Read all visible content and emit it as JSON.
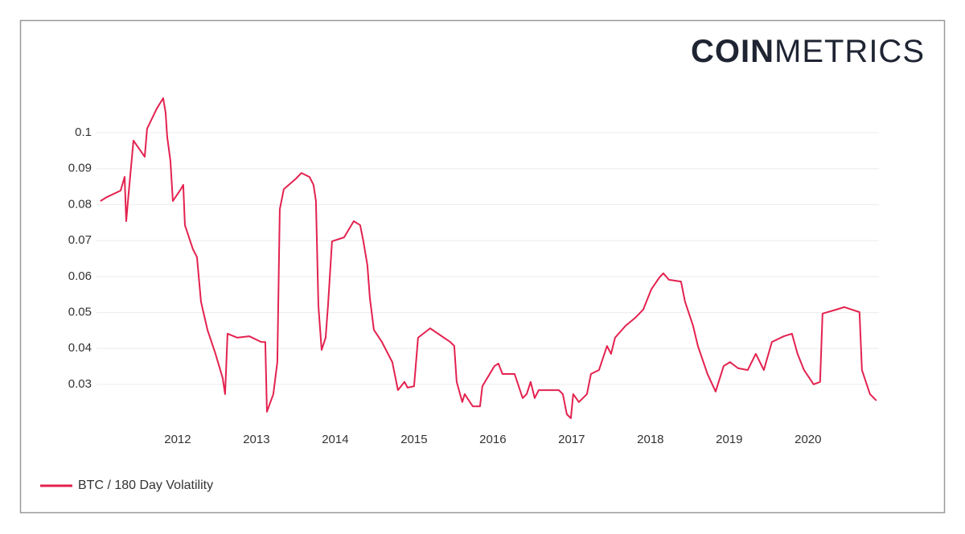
{
  "brand": {
    "bold": "COIN",
    "light": "METRICS"
  },
  "chart_data": {
    "type": "line",
    "x": [
      2011.02,
      2011.102,
      2011.276,
      2011.327,
      2011.347,
      2011.378,
      2011.439,
      2011.582,
      2011.612,
      2011.735,
      2011.816,
      2011.847,
      2011.867,
      2011.908,
      2011.939,
      2012.041,
      2012.071,
      2012.092,
      2012.194,
      2012.245,
      2012.296,
      2012.378,
      2012.48,
      2012.571,
      2012.602,
      2012.633,
      2012.755,
      2012.908,
      2013.061,
      2013.112,
      2013.133,
      2013.214,
      2013.265,
      2013.296,
      2013.347,
      2013.5,
      2013.571,
      2013.673,
      2013.724,
      2013.755,
      2013.786,
      2013.827,
      2013.878,
      2013.908,
      2013.959,
      2014.112,
      2014.235,
      2014.316,
      2014.357,
      2014.408,
      2014.439,
      2014.49,
      2014.592,
      2014.724,
      2014.796,
      2014.878,
      2014.918,
      2015.0,
      2015.051,
      2015.204,
      2015.459,
      2015.51,
      2015.541,
      2015.612,
      2015.643,
      2015.745,
      2015.837,
      2015.867,
      2016.02,
      2016.071,
      2016.122,
      2016.276,
      2016.378,
      2016.429,
      2016.48,
      2016.531,
      2016.582,
      2016.837,
      2016.888,
      2016.939,
      2016.99,
      2017.02,
      2017.092,
      2017.194,
      2017.245,
      2017.347,
      2017.449,
      2017.5,
      2017.551,
      2017.684,
      2017.806,
      2017.908,
      2018.01,
      2018.112,
      2018.163,
      2018.235,
      2018.388,
      2018.439,
      2018.541,
      2018.602,
      2018.724,
      2018.827,
      2018.929,
      2019.01,
      2019.112,
      2019.235,
      2019.337,
      2019.439,
      2019.541,
      2019.694,
      2019.796,
      2019.867,
      2019.949,
      2020.071,
      2020.153,
      2020.184,
      2020.357,
      2020.459,
      2020.653,
      2020.684,
      2020.786,
      2020.867
    ],
    "series": [
      {
        "name": "BTC / 180 Day Volatility",
        "color": "#e3224f",
        "values": [
          0.081,
          0.0821,
          0.0839,
          0.0877,
          0.0754,
          0.0832,
          0.0978,
          0.0933,
          0.1011,
          0.1067,
          0.1096,
          0.1056,
          0.0989,
          0.0922,
          0.081,
          0.0843,
          0.0855,
          0.0743,
          0.0676,
          0.0654,
          0.053,
          0.0452,
          0.0385,
          0.0318,
          0.0273,
          0.0441,
          0.043,
          0.0434,
          0.0418,
          0.0418,
          0.0224,
          0.0273,
          0.0362,
          0.0787,
          0.0843,
          0.0872,
          0.0888,
          0.0877,
          0.0855,
          0.081,
          0.0519,
          0.0396,
          0.043,
          0.0519,
          0.0698,
          0.0709,
          0.0754,
          0.0743,
          0.0698,
          0.0631,
          0.0541,
          0.0452,
          0.0418,
          0.0362,
          0.0284,
          0.0307,
          0.0291,
          0.0295,
          0.043,
          0.0456,
          0.0418,
          0.0407,
          0.0307,
          0.0251,
          0.0273,
          0.0239,
          0.0239,
          0.0295,
          0.0351,
          0.0358,
          0.0329,
          0.0329,
          0.0262,
          0.0273,
          0.0307,
          0.0262,
          0.0284,
          0.0284,
          0.0273,
          0.0217,
          0.0206,
          0.0273,
          0.0251,
          0.0273,
          0.0329,
          0.034,
          0.0407,
          0.0385,
          0.043,
          0.0463,
          0.0485,
          0.0508,
          0.0564,
          0.0597,
          0.0609,
          0.0591,
          0.0586,
          0.053,
          0.0463,
          0.0407,
          0.0329,
          0.028,
          0.0351,
          0.0362,
          0.0345,
          0.034,
          0.0385,
          0.034,
          0.0418,
          0.0434,
          0.0441,
          0.0385,
          0.034,
          0.03,
          0.0307,
          0.0497,
          0.0508,
          0.0515,
          0.0501,
          0.034,
          0.0273,
          0.0255
        ]
      }
    ],
    "xlim": [
      2010.97,
      2020.9
    ],
    "xticks": [
      2012,
      2013,
      2014,
      2015,
      2016,
      2017,
      2018,
      2019,
      2020
    ],
    "ylim": [
      0.02,
      0.11
    ],
    "yticks": [
      0.03,
      0.04,
      0.05,
      0.06,
      0.07,
      0.08,
      0.09,
      0.1
    ],
    "grid": true,
    "legend": "bottom-left"
  }
}
